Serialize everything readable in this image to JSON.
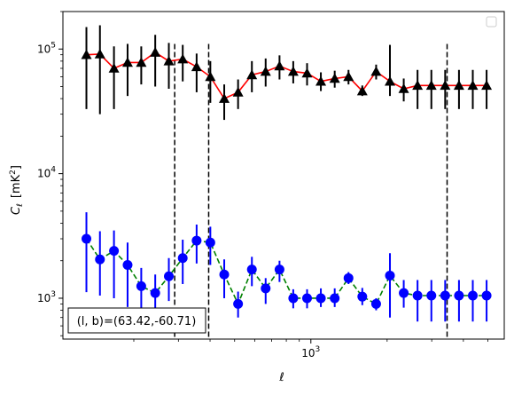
{
  "chart_data": {
    "type": "line",
    "title": "",
    "xlabel": "ℓ",
    "ylabel_main": "C",
    "ylabel_sub": "ℓ",
    "ylabel_unit_open": "[mK",
    "ylabel_unit_sup": "2",
    "ylabel_unit_close": "]",
    "xscale": "log",
    "yscale": "log",
    "xlim": [
      105,
      5800
    ],
    "ylim": [
      470,
      200000
    ],
    "x_ticks": [
      {
        "value": 1000,
        "base": "10",
        "exp": "3"
      }
    ],
    "y_ticks": [
      {
        "value": 1000,
        "base": "10",
        "exp": "3"
      },
      {
        "value": 10000,
        "base": "10",
        "exp": "4"
      },
      {
        "value": 100000,
        "base": "10",
        "exp": "5"
      }
    ],
    "vlines": [
      290,
      395,
      3450
    ],
    "vline_ymax": 110000,
    "legend": {
      "placement": "top-right",
      "entries": []
    },
    "annotation": "(l, b)=(63.42,-60.71)",
    "colors": {
      "black": "#000000",
      "red": "#ff0000",
      "blue": "#0000ff",
      "green": "#008000"
    },
    "series": [
      {
        "marker": "triangle",
        "line_color": "#ff0000",
        "line_style": "solid",
        "marker_color": "#000000",
        "errbar_color": "#000000",
        "x": [
          130,
          147,
          167,
          189,
          214,
          243,
          275,
          312,
          354,
          401,
          455,
          516,
          585,
          663,
          752,
          852,
          966,
          1095,
          1242,
          1408,
          1596,
          1810,
          2052,
          2326,
          2637,
          2990,
          3390,
          3843,
          4357,
          4940
        ],
        "y": [
          90000,
          91000,
          70000,
          78000,
          78000,
          94000,
          80000,
          83000,
          72000,
          60000,
          40000,
          45000,
          62000,
          66000,
          73000,
          66000,
          64000,
          55000,
          58000,
          60000,
          46000,
          66000,
          55000,
          48000,
          51000,
          51000,
          51000,
          51000,
          51000,
          51000
        ],
        "yerr_lo": [
          33000,
          30000,
          33000,
          42000,
          52000,
          50000,
          48000,
          55000,
          45000,
          37000,
          27000,
          33000,
          45000,
          50000,
          57000,
          53000,
          51000,
          46000,
          49000,
          52000,
          42000,
          57000,
          42000,
          38000,
          33000,
          33000,
          33000,
          33000,
          33000,
          33000
        ],
        "yerr_hi": [
          150000,
          155000,
          105000,
          110000,
          105000,
          130000,
          112000,
          108000,
          92000,
          80000,
          52000,
          57000,
          80000,
          84000,
          89000,
          80000,
          77000,
          65000,
          67000,
          68000,
          51000,
          75000,
          108000,
          58000,
          68000,
          68000,
          68000,
          68000,
          68000,
          68000
        ]
      },
      {
        "marker": "circle",
        "line_color": "#008000",
        "line_style": "dashed",
        "marker_color": "#0000ff",
        "errbar_color": "#0000ff",
        "x": [
          130,
          147,
          167,
          189,
          214,
          243,
          275,
          312,
          354,
          401,
          455,
          516,
          585,
          663,
          752,
          852,
          966,
          1095,
          1242,
          1408,
          1596,
          1810,
          2052,
          2326,
          2637,
          2990,
          3390,
          3843,
          4357,
          4940
        ],
        "y": [
          3000,
          2050,
          2400,
          1850,
          1250,
          1100,
          1500,
          2100,
          2900,
          2800,
          1550,
          900,
          1700,
          1200,
          1700,
          1000,
          1000,
          1000,
          1000,
          1450,
          1030,
          900,
          1520,
          1100,
          1050,
          1050,
          1050,
          1050,
          1050,
          1050
        ],
        "yerr_lo": [
          1120,
          1050,
          1000,
          850,
          700,
          680,
          950,
          1300,
          1900,
          1850,
          1000,
          700,
          1250,
          900,
          1350,
          830,
          830,
          850,
          850,
          1300,
          880,
          800,
          700,
          840,
          650,
          650,
          650,
          650,
          650,
          650
        ],
        "yerr_hi": [
          4900,
          3450,
          3500,
          2800,
          1750,
          1550,
          2100,
          2950,
          3900,
          3750,
          2050,
          1130,
          2150,
          1450,
          2000,
          1180,
          1180,
          1200,
          1200,
          1620,
          1210,
          1000,
          2300,
          1400,
          1400,
          1400,
          1400,
          1400,
          1400,
          1400
        ]
      }
    ]
  }
}
